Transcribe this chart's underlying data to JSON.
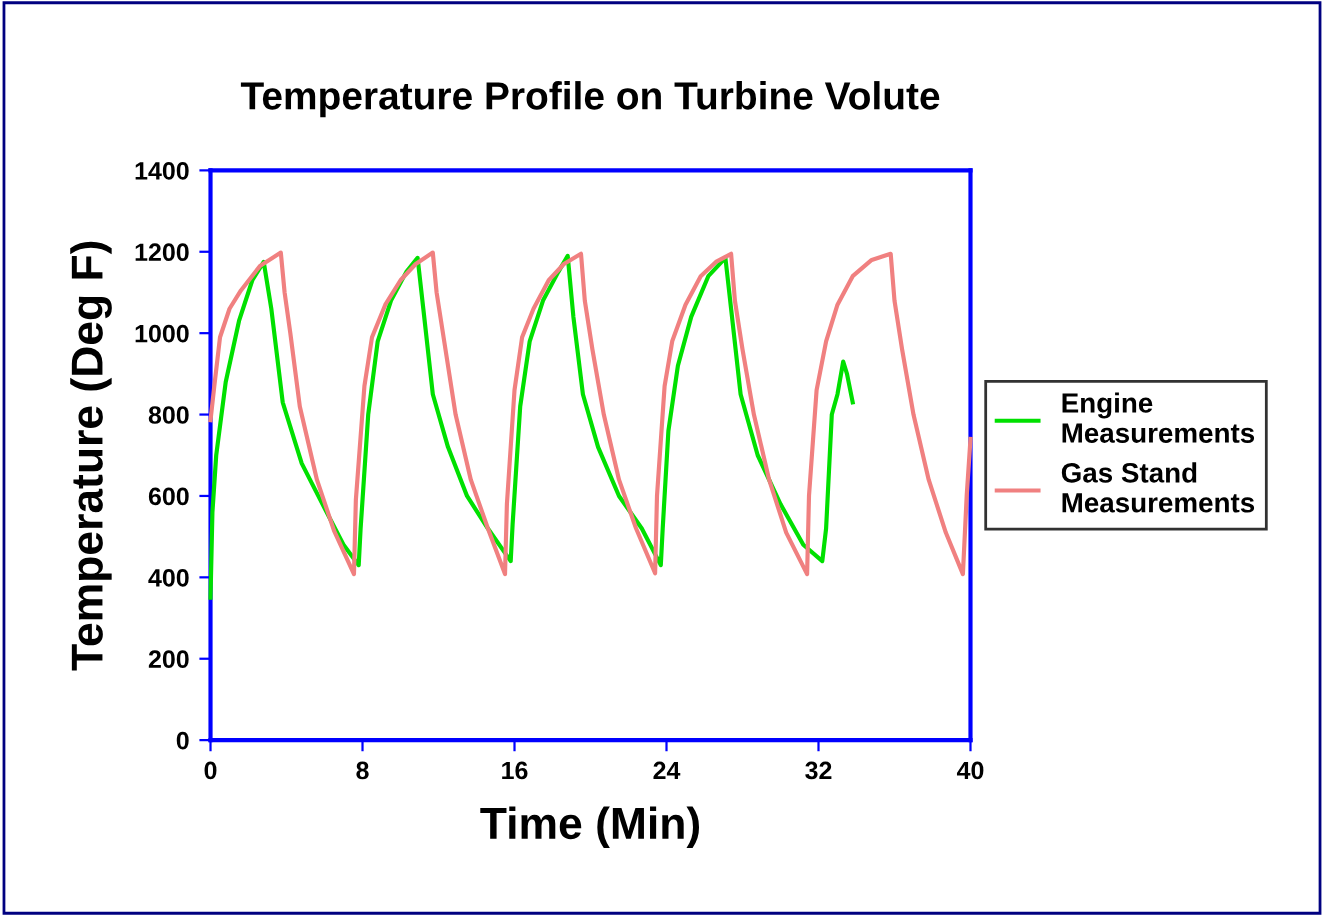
{
  "chart_data": {
    "type": "line",
    "title": "Temperature Profile on Turbine Volute",
    "xlabel": "Time (Min)",
    "ylabel": "Temperature (Deg F)",
    "xlim": [
      0,
      40
    ],
    "xticks": [
      0,
      8,
      16,
      24,
      32,
      40
    ],
    "ylim": [
      0,
      1400
    ],
    "yticks": [
      0,
      200,
      400,
      600,
      800,
      1000,
      1200,
      1400
    ],
    "grid": false,
    "legend": "right",
    "marker": "none",
    "line_style": "solid",
    "series": [
      {
        "name": "Engine Measurements",
        "color": "#00e000",
        "x": [
          0,
          0.1,
          0.3,
          0.8,
          1.5,
          2.2,
          2.8,
          3.2,
          3.8,
          4.8,
          6,
          7,
          7.8,
          7.9,
          8.3,
          8.8,
          9.5,
          10.3,
          10.9,
          11.2,
          11.7,
          12.5,
          13.5,
          14.6,
          15.8,
          15.9,
          16.3,
          16.8,
          17.5,
          18.3,
          18.8,
          19.1,
          19.6,
          20.4,
          21.5,
          22.7,
          23.7,
          23.8,
          24.1,
          24.6,
          25.3,
          26.2,
          27.1,
          27.4,
          27.9,
          28.8,
          30,
          31.2,
          32.2,
          32.4,
          32.7,
          33.0,
          33.3,
          33.5,
          33.8
        ],
        "values": [
          350,
          560,
          700,
          880,
          1030,
          1130,
          1175,
          1060,
          830,
          680,
          570,
          480,
          430,
          520,
          800,
          980,
          1080,
          1150,
          1185,
          1060,
          850,
          720,
          600,
          520,
          440,
          530,
          820,
          980,
          1080,
          1150,
          1190,
          1040,
          850,
          720,
          600,
          520,
          430,
          520,
          760,
          920,
          1040,
          1140,
          1185,
          1060,
          850,
          700,
          580,
          480,
          440,
          520,
          800,
          850,
          930,
          900,
          830
        ]
      },
      {
        "name": "Gas Stand Measurements",
        "color": "#f08080",
        "x": [
          0,
          0.2,
          0.5,
          1.0,
          1.6,
          2.6,
          3.7,
          3.9,
          4.2,
          4.7,
          5.6,
          6.5,
          7.55,
          7.65,
          8.1,
          8.5,
          9.2,
          10,
          10.8,
          11.7,
          11.9,
          12.3,
          12.9,
          13.7,
          14.6,
          15.5,
          15.6,
          16.0,
          16.4,
          17,
          17.8,
          18.6,
          19.5,
          19.7,
          20.1,
          20.7,
          21.5,
          22.4,
          23.4,
          23.5,
          23.9,
          24.3,
          25,
          25.8,
          26.6,
          27.4,
          27.6,
          28,
          28.6,
          29.4,
          30.3,
          31.4,
          31.5,
          31.9,
          32.4,
          33,
          33.8,
          34.8,
          35.8,
          36,
          36.4,
          37,
          37.8,
          38.7,
          39.6,
          39.8,
          40
        ],
        "values": [
          786,
          870,
          990,
          1060,
          1105,
          1165,
          1198,
          1100,
          1000,
          820,
          640,
          515,
          408,
          590,
          870,
          990,
          1070,
          1130,
          1170,
          1198,
          1100,
          980,
          800,
          640,
          520,
          408,
          580,
          860,
          990,
          1060,
          1130,
          1170,
          1195,
          1080,
          960,
          800,
          640,
          520,
          410,
          600,
          870,
          980,
          1070,
          1140,
          1175,
          1195,
          1080,
          960,
          800,
          640,
          510,
          408,
          600,
          860,
          980,
          1070,
          1140,
          1180,
          1195,
          1080,
          960,
          800,
          640,
          510,
          408,
          600,
          740
        ]
      }
    ]
  }
}
